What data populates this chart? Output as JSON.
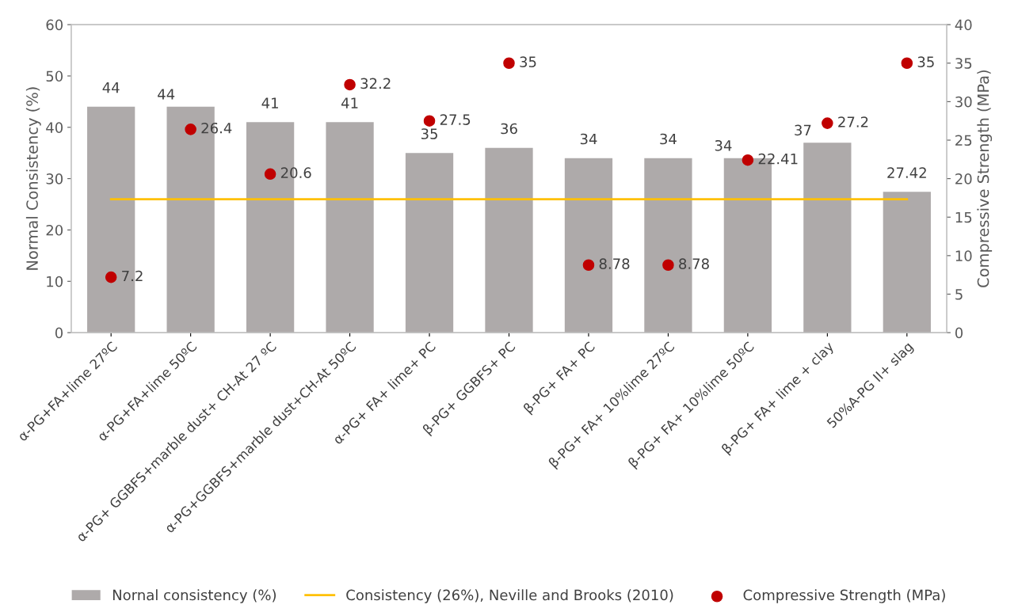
{
  "chart_data": {
    "type": "bar",
    "categories": [
      "α-PG+FA+lime 27ºC",
      "α-PG+FA+lime 50ºC",
      "α-PG+ GGBFS+marble dust+ CH-At 27 ºC",
      "α-PG+GGBFS+marble dust+CH-At 50ºC",
      "α-PG+ FA+ lime+ PC",
      "β-PG+ GGBFS+ PC",
      "β-PG+ FA+ PC",
      "β-PG+ FA+ 10%lime 27ºC",
      "β-PG+ FA+ 10%lime 50ºC",
      "β-PG+ FA+ lime + clay",
      "50%A-PG II+ slag"
    ],
    "series": [
      {
        "name": "Nornal consistency (%)",
        "color": "#aeaaaa",
        "values": [
          44,
          44,
          41,
          41,
          35,
          36,
          34,
          34,
          34,
          37,
          27.42
        ],
        "value_labels": [
          "44",
          "44",
          "41",
          "41",
          "35",
          "36",
          "34",
          "34",
          "34",
          "37",
          "27.42"
        ]
      },
      {
        "name": "Consistency (26%), Neville and Brooks (2010)",
        "type": "line",
        "color": "#ffc000",
        "values": [
          26,
          26,
          26,
          26,
          26,
          26,
          26,
          26,
          26,
          26,
          26
        ]
      },
      {
        "name": "Compressive Strength (MPa)",
        "type": "scatter",
        "axis": "y2",
        "marker": "circle",
        "color": "#c00000",
        "values": [
          7.2,
          26.4,
          20.6,
          32.2,
          27.5,
          35,
          8.78,
          8.78,
          22.41,
          27.2,
          35
        ],
        "value_labels": [
          "7.2",
          "26.4",
          "20.6",
          "32.2",
          "27.5",
          "35",
          "8.78",
          "8.78",
          "22.41",
          "27.2",
          "35"
        ]
      }
    ],
    "ylabel": "Normal Consistency (%)",
    "y2label": "Compressive Strength (MPa)",
    "ylim": [
      0,
      60
    ],
    "yticks": [
      0,
      10,
      20,
      30,
      40,
      50,
      60
    ],
    "y2lim": [
      0,
      40
    ],
    "y2ticks": [
      0,
      5,
      10,
      15,
      20,
      25,
      30,
      35,
      40
    ],
    "grid": false,
    "legend": "bottom"
  }
}
